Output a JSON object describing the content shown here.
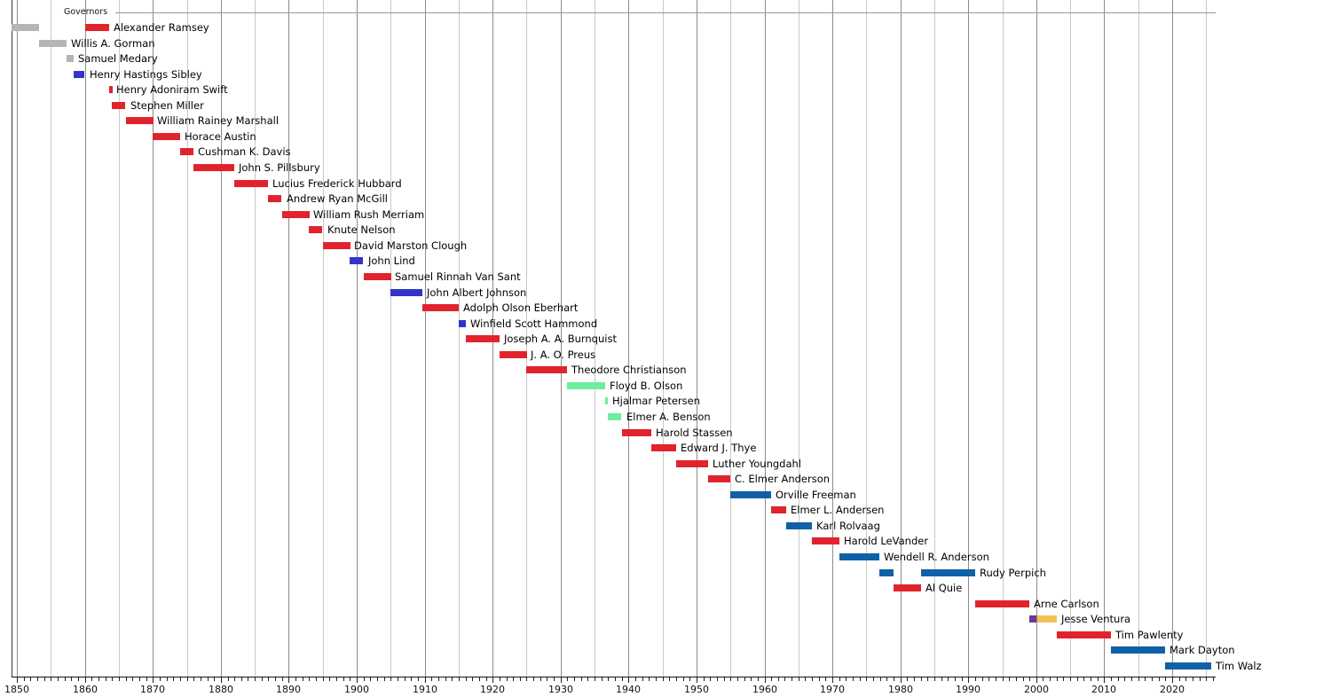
{
  "header": {
    "title": "Governors"
  },
  "chart_data": {
    "type": "timeline",
    "title": "Governors",
    "x_axis": {
      "start": 1849.2,
      "end": 2026.4,
      "minor_tick_interval_years": 1,
      "grid_interval_years": 5,
      "label_interval_years": 10,
      "tick_labels": [
        "1850",
        "1860",
        "1870",
        "1880",
        "1890",
        "1900",
        "1910",
        "1920",
        "1930",
        "1940",
        "1950",
        "1960",
        "1970",
        "1980",
        "1990",
        "2000",
        "2010",
        "2020"
      ]
    },
    "legend_colors": {
      "territorial": "#b5b5b5",
      "democratic": "#3333cc",
      "republican": "#e0232c",
      "farmer_labor": "#6cee9a",
      "dfl": "#1060a8",
      "reform": "#6a3a91",
      "independence": "#f0c254"
    },
    "grid_colors": {
      "five_year": "#c9c9c9",
      "decade": "#8c8c8c"
    },
    "rows": [
      {
        "name": "Alexander Ramsey",
        "segments": [
          {
            "party": "territorial",
            "start": 1849.2,
            "end": 1853.3
          },
          {
            "party": "republican",
            "start": 1860.0,
            "end": 1863.5
          }
        ]
      },
      {
        "name": "Willis A. Gorman",
        "segments": [
          {
            "party": "territorial",
            "start": 1853.3,
            "end": 1857.3
          }
        ]
      },
      {
        "name": "Samuel Medary",
        "segments": [
          {
            "party": "territorial",
            "start": 1857.3,
            "end": 1858.3
          }
        ]
      },
      {
        "name": "Henry Hastings Sibley",
        "segments": [
          {
            "party": "democratic",
            "start": 1858.4,
            "end": 1860.0
          }
        ]
      },
      {
        "name": "Henry Adoniram Swift",
        "segments": [
          {
            "party": "republican",
            "start": 1863.5,
            "end": 1864.0
          }
        ]
      },
      {
        "name": "Stephen Miller",
        "segments": [
          {
            "party": "republican",
            "start": 1864.0,
            "end": 1866.0
          }
        ]
      },
      {
        "name": "William Rainey Marshall",
        "segments": [
          {
            "party": "republican",
            "start": 1866.0,
            "end": 1870.0
          }
        ]
      },
      {
        "name": "Horace Austin",
        "segments": [
          {
            "party": "republican",
            "start": 1870.0,
            "end": 1874.0
          }
        ]
      },
      {
        "name": "Cushman K. Davis",
        "segments": [
          {
            "party": "republican",
            "start": 1874.0,
            "end": 1876.0
          }
        ]
      },
      {
        "name": "John S. Pillsbury",
        "segments": [
          {
            "party": "republican",
            "start": 1876.0,
            "end": 1882.0
          }
        ]
      },
      {
        "name": "Lucius Frederick Hubbard",
        "segments": [
          {
            "party": "republican",
            "start": 1882.0,
            "end": 1887.0
          }
        ]
      },
      {
        "name": "Andrew Ryan McGill",
        "segments": [
          {
            "party": "republican",
            "start": 1887.0,
            "end": 1889.0
          }
        ]
      },
      {
        "name": "William Rush Merriam",
        "segments": [
          {
            "party": "republican",
            "start": 1889.0,
            "end": 1893.0
          }
        ]
      },
      {
        "name": "Knute Nelson",
        "segments": [
          {
            "party": "republican",
            "start": 1893.0,
            "end": 1895.0
          }
        ]
      },
      {
        "name": "David Marston Clough",
        "segments": [
          {
            "party": "republican",
            "start": 1895.0,
            "end": 1899.0
          }
        ]
      },
      {
        "name": "John Lind",
        "segments": [
          {
            "party": "democratic",
            "start": 1899.0,
            "end": 1901.0
          }
        ]
      },
      {
        "name": "Samuel Rinnah Van Sant",
        "segments": [
          {
            "party": "republican",
            "start": 1901.0,
            "end": 1905.0
          }
        ]
      },
      {
        "name": "John Albert Johnson",
        "segments": [
          {
            "party": "democratic",
            "start": 1905.0,
            "end": 1909.7
          }
        ]
      },
      {
        "name": "Adolph Olson Eberhart",
        "segments": [
          {
            "party": "republican",
            "start": 1909.7,
            "end": 1915.0
          }
        ]
      },
      {
        "name": "Winfield Scott Hammond",
        "segments": [
          {
            "party": "democratic",
            "start": 1915.0,
            "end": 1916.0
          }
        ]
      },
      {
        "name": "Joseph A. A. Burnquist",
        "segments": [
          {
            "party": "republican",
            "start": 1916.0,
            "end": 1921.0
          }
        ]
      },
      {
        "name": "J. A. O. Preus",
        "segments": [
          {
            "party": "republican",
            "start": 1921.0,
            "end": 1925.0
          }
        ]
      },
      {
        "name": "Theodore Christianson",
        "segments": [
          {
            "party": "republican",
            "start": 1925.0,
            "end": 1931.0
          }
        ]
      },
      {
        "name": "Floyd B. Olson",
        "segments": [
          {
            "party": "farmer_labor",
            "start": 1931.0,
            "end": 1936.6
          }
        ]
      },
      {
        "name": "Hjalmar Petersen",
        "segments": [
          {
            "party": "farmer_labor",
            "start": 1936.6,
            "end": 1937.0
          }
        ]
      },
      {
        "name": "Elmer A. Benson",
        "segments": [
          {
            "party": "farmer_labor",
            "start": 1937.0,
            "end": 1939.0
          }
        ]
      },
      {
        "name": "Harold Stassen",
        "segments": [
          {
            "party": "republican",
            "start": 1939.0,
            "end": 1943.3
          }
        ]
      },
      {
        "name": "Edward J. Thye",
        "segments": [
          {
            "party": "republican",
            "start": 1943.3,
            "end": 1947.0
          }
        ]
      },
      {
        "name": "Luther Youngdahl",
        "segments": [
          {
            "party": "republican",
            "start": 1947.0,
            "end": 1951.7
          }
        ]
      },
      {
        "name": "C. Elmer Anderson",
        "segments": [
          {
            "party": "republican",
            "start": 1951.7,
            "end": 1955.0
          }
        ]
      },
      {
        "name": "Orville Freeman",
        "segments": [
          {
            "party": "dfl",
            "start": 1955.0,
            "end": 1961.0
          }
        ]
      },
      {
        "name": "Elmer L. Andersen",
        "segments": [
          {
            "party": "republican",
            "start": 1961.0,
            "end": 1963.2
          }
        ]
      },
      {
        "name": "Karl Rolvaag",
        "segments": [
          {
            "party": "dfl",
            "start": 1963.2,
            "end": 1967.0
          }
        ]
      },
      {
        "name": "Harold LeVander",
        "segments": [
          {
            "party": "republican",
            "start": 1967.0,
            "end": 1971.0
          }
        ]
      },
      {
        "name": "Wendell R. Anderson",
        "segments": [
          {
            "party": "dfl",
            "start": 1971.0,
            "end": 1976.9
          }
        ]
      },
      {
        "name": "Rudy Perpich",
        "segments": [
          {
            "party": "dfl",
            "start": 1976.9,
            "end": 1979.0
          },
          {
            "party": "dfl",
            "start": 1983.0,
            "end": 1991.0
          }
        ]
      },
      {
        "name": "Al Quie",
        "segments": [
          {
            "party": "republican",
            "start": 1979.0,
            "end": 1983.0
          }
        ]
      },
      {
        "name": "Arne Carlson",
        "segments": [
          {
            "party": "republican",
            "start": 1991.0,
            "end": 1999.0
          }
        ]
      },
      {
        "name": "Jesse Ventura",
        "segments": [
          {
            "party": "reform",
            "start": 1999.0,
            "end": 2000.1
          },
          {
            "party": "independence",
            "start": 2000.1,
            "end": 2003.0
          }
        ]
      },
      {
        "name": "Tim Pawlenty",
        "segments": [
          {
            "party": "republican",
            "start": 2003.0,
            "end": 2011.0
          }
        ]
      },
      {
        "name": "Mark Dayton",
        "segments": [
          {
            "party": "dfl",
            "start": 2011.0,
            "end": 2019.0
          }
        ]
      },
      {
        "name": "Tim Walz",
        "segments": [
          {
            "party": "dfl",
            "start": 2019.0,
            "end": 2025.8
          }
        ]
      }
    ]
  }
}
